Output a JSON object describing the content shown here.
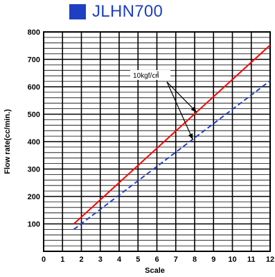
{
  "page": {
    "title": "JLHN700",
    "title_color": "#1f3fc2",
    "marker_color": "#1f3fc2"
  },
  "chart_data": {
    "type": "line",
    "title": "",
    "xlabel": "Scale",
    "ylabel": "Flow rate(cc/min.)",
    "xlim": [
      0,
      12
    ],
    "ylim": [
      0,
      800
    ],
    "x_ticks": [
      0,
      1,
      2,
      3,
      4,
      5,
      6,
      7,
      8,
      9,
      10,
      11,
      12
    ],
    "y_ticks": [
      100,
      200,
      300,
      400,
      500,
      600,
      700,
      800
    ],
    "grid": true,
    "annotation": "10kgf/㎠",
    "series": [
      {
        "color": "#ff0000",
        "style": "solid",
        "x": [
          1.6,
          12
        ],
        "y": [
          100,
          752
        ]
      },
      {
        "color": "#1f3fd0",
        "style": "dashed",
        "x": [
          1.6,
          12
        ],
        "y": [
          80,
          622
        ]
      }
    ]
  }
}
